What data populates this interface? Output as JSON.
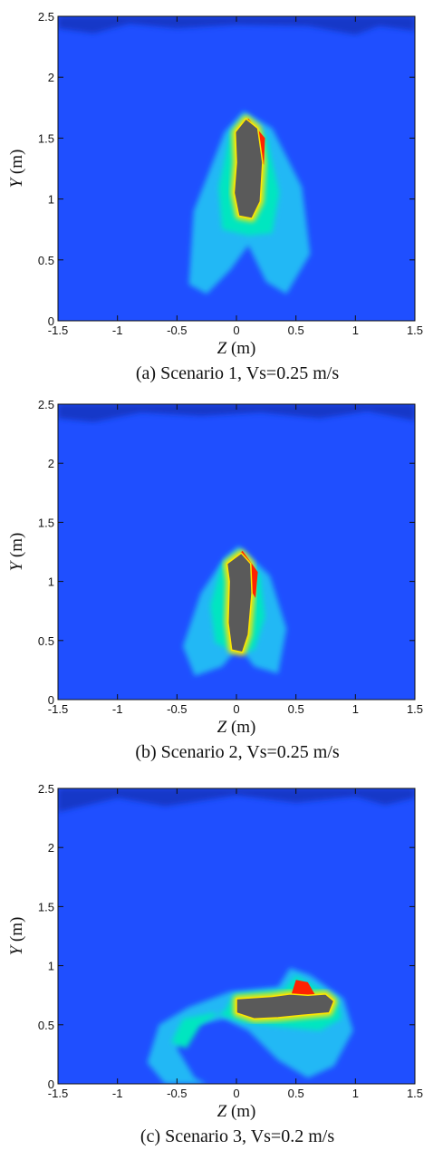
{
  "chart_data": [
    {
      "type": "heatmap",
      "caption": "(a) Scenario 1, Vs=0.25 m/s",
      "xlabel": "Z (m)",
      "ylabel": "Y (m)",
      "xlim": [
        -1.5,
        1.5
      ],
      "ylim": [
        0,
        2.5
      ],
      "x_ticks": [
        "-1.5",
        "-1",
        "-0.5",
        "0",
        "0.5",
        "1",
        "1.5"
      ],
      "y_ticks": [
        "0",
        "0.5",
        "1",
        "1.5",
        "2",
        "2.5"
      ],
      "colors": {
        "background": "#1f4fff",
        "surface": "#1238c8",
        "low": "#22b8f5",
        "mid": "#00e6c0",
        "high": "#ffe600",
        "peak": "#ff2200",
        "core": "#5a5a5a"
      },
      "body_path": [
        [
          0.08,
          1.66
        ],
        [
          0.18,
          1.58
        ],
        [
          0.22,
          1.3
        ],
        [
          0.2,
          0.98
        ],
        [
          0.13,
          0.84
        ],
        [
          0.02,
          0.86
        ],
        [
          -0.02,
          1.05
        ],
        [
          0.0,
          1.3
        ],
        [
          -0.01,
          1.55
        ]
      ],
      "outer_plume": [
        [
          0.06,
          1.72
        ],
        [
          0.3,
          1.58
        ],
        [
          0.55,
          1.1
        ],
        [
          0.62,
          0.55
        ],
        [
          0.42,
          0.22
        ],
        [
          0.25,
          0.32
        ],
        [
          0.1,
          0.62
        ],
        [
          -0.05,
          0.42
        ],
        [
          -0.25,
          0.22
        ],
        [
          -0.4,
          0.3
        ],
        [
          -0.36,
          0.9
        ],
        [
          -0.1,
          1.55
        ]
      ],
      "inner_plume": [
        [
          0.08,
          1.68
        ],
        [
          0.25,
          1.52
        ],
        [
          0.36,
          1.05
        ],
        [
          0.3,
          0.72
        ],
        [
          0.1,
          0.7
        ],
        [
          -0.12,
          0.75
        ],
        [
          -0.15,
          1.1
        ],
        [
          -0.05,
          1.55
        ]
      ],
      "hot_zones": [
        [
          [
            0.02,
            1.58
          ],
          [
            0.1,
            1.66
          ],
          [
            0.24,
            1.5
          ],
          [
            0.23,
            1.28
          ],
          [
            0.18,
            1.42
          ],
          [
            0.05,
            1.48
          ]
        ]
      ],
      "surface_path": [
        [
          -1.5,
          2.5
        ],
        [
          1.5,
          2.5
        ],
        [
          1.5,
          2.38
        ],
        [
          1.2,
          2.42
        ],
        [
          1.0,
          2.35
        ],
        [
          0.6,
          2.42
        ],
        [
          0.0,
          2.43
        ],
        [
          -0.5,
          2.4
        ],
        [
          -0.9,
          2.44
        ],
        [
          -1.2,
          2.36
        ],
        [
          -1.5,
          2.4
        ]
      ]
    },
    {
      "type": "heatmap",
      "caption": "(b) Scenario 2, Vs=0.25 m/s",
      "xlabel": "Z (m)",
      "ylabel": "Y (m)",
      "xlim": [
        -1.5,
        1.5
      ],
      "ylim": [
        0,
        2.5
      ],
      "x_ticks": [
        "-1.5",
        "-1",
        "-0.5",
        "0",
        "0.5",
        "1",
        "1.5"
      ],
      "y_ticks": [
        "0",
        "0.5",
        "1",
        "1.5",
        "2",
        "2.5"
      ],
      "colors": {
        "background": "#1f4fff",
        "surface": "#1238c8",
        "low": "#22b8f5",
        "mid": "#00e6c0",
        "high": "#ffe600",
        "peak": "#ff2200",
        "core": "#5a5a5a"
      },
      "body_path": [
        [
          0.04,
          1.24
        ],
        [
          0.12,
          1.15
        ],
        [
          0.13,
          0.9
        ],
        [
          0.1,
          0.55
        ],
        [
          0.05,
          0.4
        ],
        [
          -0.04,
          0.42
        ],
        [
          -0.07,
          0.65
        ],
        [
          -0.06,
          1.0
        ],
        [
          -0.08,
          1.15
        ]
      ],
      "outer_plume": [
        [
          0.02,
          1.3
        ],
        [
          0.28,
          1.05
        ],
        [
          0.42,
          0.6
        ],
        [
          0.35,
          0.22
        ],
        [
          0.15,
          0.28
        ],
        [
          0.02,
          0.45
        ],
        [
          -0.12,
          0.28
        ],
        [
          -0.35,
          0.2
        ],
        [
          -0.45,
          0.45
        ],
        [
          -0.3,
          0.9
        ],
        [
          -0.1,
          1.2
        ]
      ],
      "inner_plume": [
        [
          0.03,
          1.26
        ],
        [
          0.2,
          1.05
        ],
        [
          0.24,
          0.7
        ],
        [
          0.15,
          0.42
        ],
        [
          0.0,
          0.4
        ],
        [
          -0.18,
          0.48
        ],
        [
          -0.22,
          0.8
        ],
        [
          -0.12,
          1.15
        ]
      ],
      "hot_zones": [
        [
          [
            -0.02,
            1.18
          ],
          [
            0.05,
            1.26
          ],
          [
            0.18,
            1.08
          ],
          [
            0.16,
            0.86
          ],
          [
            0.1,
            0.96
          ],
          [
            -0.02,
            1.05
          ]
        ]
      ],
      "surface_path": [
        [
          -1.5,
          2.5
        ],
        [
          1.5,
          2.5
        ],
        [
          1.5,
          2.36
        ],
        [
          1.1,
          2.44
        ],
        [
          0.7,
          2.38
        ],
        [
          0.2,
          2.43
        ],
        [
          -0.3,
          2.4
        ],
        [
          -0.8,
          2.43
        ],
        [
          -1.2,
          2.35
        ],
        [
          -1.5,
          2.38
        ]
      ]
    },
    {
      "type": "heatmap",
      "caption": "(c) Scenario 3, Vs=0.2 m/s",
      "xlabel": "Z (m)",
      "ylabel": "Y (m)",
      "xlim": [
        -1.5,
        1.5
      ],
      "ylim": [
        0,
        2.5
      ],
      "x_ticks": [
        "-1.5",
        "-1",
        "-0.5",
        "0",
        "0.5",
        "1",
        "1.5"
      ],
      "y_ticks": [
        "0",
        "0.5",
        "1",
        "1.5",
        "2",
        "2.5"
      ],
      "colors": {
        "background": "#1f4fff",
        "surface": "#1238c8",
        "low": "#22b8f5",
        "mid": "#00e6c0",
        "high": "#ffe600",
        "peak": "#ff2200",
        "core": "#5a5a5a"
      },
      "body_path": [
        [
          0.0,
          0.72
        ],
        [
          0.3,
          0.74
        ],
        [
          0.45,
          0.76
        ],
        [
          0.6,
          0.75
        ],
        [
          0.75,
          0.76
        ],
        [
          0.82,
          0.7
        ],
        [
          0.78,
          0.6
        ],
        [
          0.55,
          0.58
        ],
        [
          0.35,
          0.56
        ],
        [
          0.15,
          0.55
        ],
        [
          0.0,
          0.6
        ]
      ],
      "outer_plume": [
        [
          -0.05,
          0.78
        ],
        [
          0.35,
          0.82
        ],
        [
          0.45,
          0.98
        ],
        [
          0.62,
          0.92
        ],
        [
          0.9,
          0.72
        ],
        [
          0.98,
          0.45
        ],
        [
          0.82,
          0.15
        ],
        [
          0.6,
          0.05
        ],
        [
          0.35,
          0.2
        ],
        [
          0.1,
          0.45
        ],
        [
          -0.1,
          0.55
        ],
        [
          -0.35,
          0.5
        ],
        [
          -0.5,
          0.3
        ],
        [
          -0.35,
          0.05
        ],
        [
          -0.25,
          0.0
        ],
        [
          -0.6,
          0.0
        ],
        [
          -0.75,
          0.18
        ],
        [
          -0.65,
          0.5
        ],
        [
          -0.4,
          0.65
        ]
      ],
      "inner_plume": [
        [
          -0.02,
          0.76
        ],
        [
          0.4,
          0.8
        ],
        [
          0.5,
          0.92
        ],
        [
          0.6,
          0.86
        ],
        [
          0.85,
          0.72
        ],
        [
          0.88,
          0.55
        ],
        [
          0.7,
          0.45
        ],
        [
          0.4,
          0.48
        ],
        [
          0.05,
          0.52
        ],
        [
          -0.2,
          0.6
        ],
        [
          -0.45,
          0.55
        ],
        [
          -0.55,
          0.35
        ],
        [
          -0.42,
          0.3
        ],
        [
          -0.3,
          0.5
        ],
        [
          -0.1,
          0.62
        ]
      ],
      "hot_zones": [
        [
          [
            0.45,
            0.72
          ],
          [
            0.5,
            0.88
          ],
          [
            0.6,
            0.86
          ],
          [
            0.68,
            0.72
          ],
          [
            0.58,
            0.66
          ]
        ]
      ],
      "surface_path": [
        [
          -1.5,
          2.5
        ],
        [
          1.5,
          2.5
        ],
        [
          1.5,
          2.42
        ],
        [
          1.25,
          2.36
        ],
        [
          1.0,
          2.43
        ],
        [
          0.5,
          2.38
        ],
        [
          0.0,
          2.44
        ],
        [
          -0.6,
          2.35
        ],
        [
          -1.0,
          2.42
        ],
        [
          -1.5,
          2.3
        ]
      ]
    }
  ]
}
